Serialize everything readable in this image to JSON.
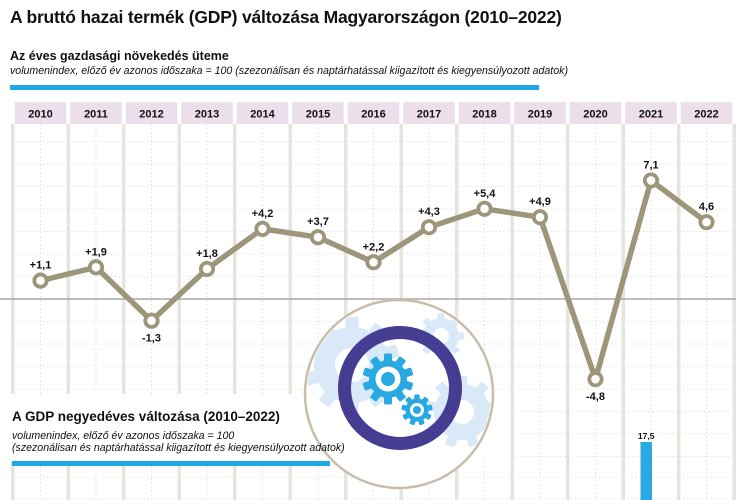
{
  "page": {
    "title": "A bruttó hazai termék (GDP) változása Magyarországon (2010–2022)"
  },
  "section_annual": {
    "title": "Az éves gazdasági növekedés üteme",
    "note": "volumenindex, előző év azonos időszaka = 100 (szezonálisan és naptárhatással kiigazított és kiegyensúlyozott adatok)"
  },
  "section_quarterly": {
    "title": "A GDP negyedéves változása (2010–2022)",
    "note_line1": "volumenindex, előző év azonos időszaka = 100",
    "note_line2": "(szezonálisan és naptárhatással kiigazított és kiegyensúlyozott adatok)"
  },
  "colors": {
    "accent_blue": "#1fa9e3",
    "bar_blue": "#29a9e1",
    "line_olive": "#9e967a",
    "band_pink": "#ebdfec",
    "ring_purple": "#453d92",
    "gear_blue": "#29a9e1",
    "gear_pale_blue": "#d9e9f7",
    "circle_tan": "#c9bdaa",
    "grid_gray": "#e5e5de",
    "grid_dot_gray": "#e3e3e0",
    "zero_line_gray": "#a8a8a8",
    "text_black": "#111111"
  },
  "chart_data": [
    {
      "type": "line",
      "title": "Az éves gazdasági növekedés üteme",
      "subtitle": "volumenindex, előző év azonos időszaka = 100 (szezonálisan és naptárhatással kiigazított és kiegyensúlyozott adatok)",
      "categories": [
        "2010",
        "2011",
        "2012",
        "2013",
        "2014",
        "2015",
        "2016",
        "2017",
        "2018",
        "2019",
        "2020",
        "2021",
        "2022"
      ],
      "values": [
        1.1,
        1.9,
        -1.3,
        1.8,
        4.2,
        3.7,
        2.2,
        4.3,
        5.4,
        4.9,
        -4.8,
        7.1,
        4.6
      ],
      "point_labels": [
        "+1,1",
        "+1,9",
        "-1,3",
        "+1,8",
        "+4,2",
        "+3,7",
        "+2,2",
        "+4,3",
        "+5,4",
        "+4,9",
        "-4,8",
        "7,1",
        "4,6"
      ],
      "xlabel": "",
      "ylabel": "",
      "ylim": [
        -6.3,
        10.5
      ],
      "grid": true,
      "zero_line": true,
      "legend": "none",
      "marker": "open-circle"
    },
    {
      "type": "bar",
      "title": "A GDP negyedéves változása (2010–2022)",
      "subtitle": "volumenindex, előző év azonos időszaka = 100 (szezonálisan és naptárhatással kiigazított és kiegyensúlyozott adatok)",
      "categories_visible": [
        "2021"
      ],
      "values_visible": [
        17.5
      ],
      "point_labels_visible": [
        "17,5"
      ]
    }
  ]
}
